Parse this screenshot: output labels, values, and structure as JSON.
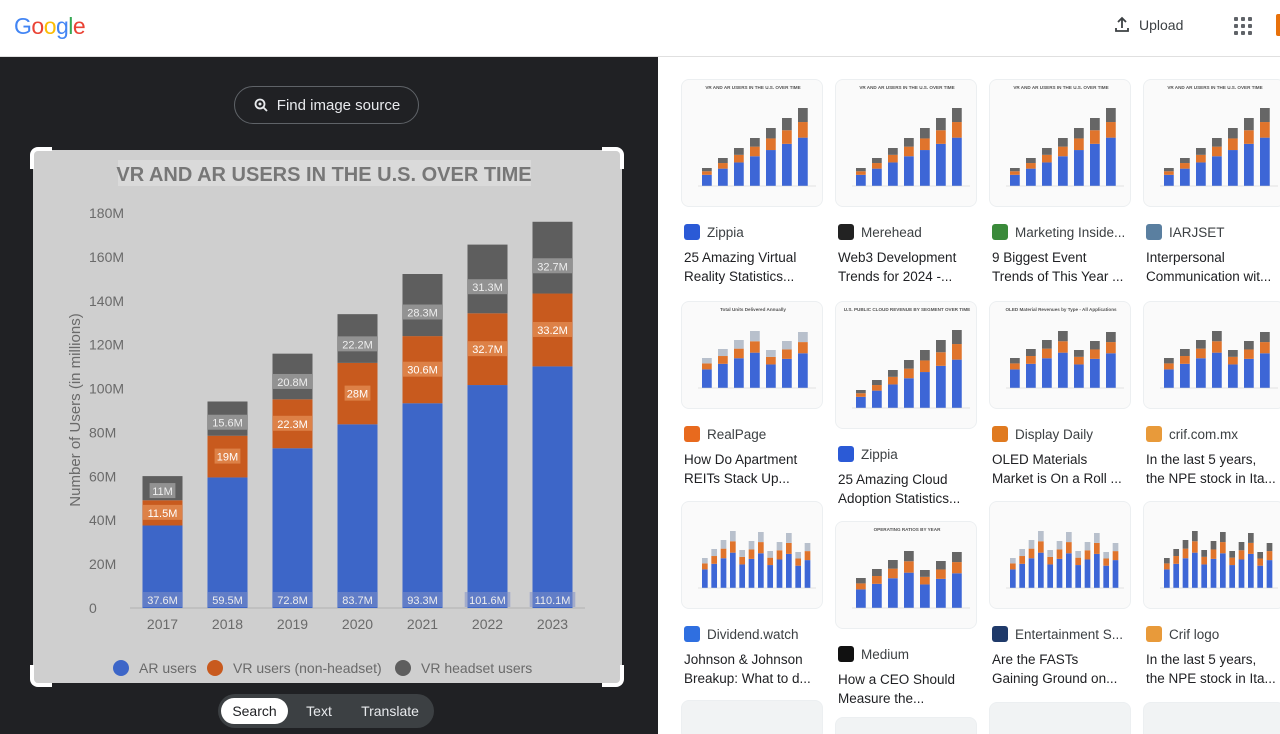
{
  "header": {
    "logo_letters": [
      {
        "ch": "G",
        "color": "#4285f4"
      },
      {
        "ch": "o",
        "color": "#ea4335"
      },
      {
        "ch": "o",
        "color": "#fbbc05"
      },
      {
        "ch": "g",
        "color": "#4285f4"
      },
      {
        "ch": "l",
        "color": "#34a853"
      },
      {
        "ch": "e",
        "color": "#ea4335"
      }
    ],
    "upload_label": "Upload"
  },
  "lens": {
    "find_source_label": "Find image source",
    "modes": [
      "Search",
      "Text",
      "Translate"
    ],
    "active_mode": "Search"
  },
  "chart_data": {
    "type": "bar",
    "stacked": true,
    "title": "VR AND AR USERS IN THE U.S. OVER TIME",
    "ylabel": "Number of Users (in millions)",
    "xlabel": "",
    "ylim": [
      0,
      180
    ],
    "yticks": [
      "0",
      "20M",
      "40M",
      "60M",
      "80M",
      "100M",
      "120M",
      "140M",
      "160M",
      "180M"
    ],
    "categories": [
      "2017",
      "2018",
      "2019",
      "2020",
      "2021",
      "2022",
      "2023"
    ],
    "series": [
      {
        "name": "AR users",
        "color": "#3d66c8",
        "values": [
          37.6,
          59.5,
          72.8,
          83.7,
          93.3,
          101.6,
          110.1
        ],
        "labels": [
          "37.6M",
          "59.5M",
          "72.8M",
          "83.7M",
          "93.3M",
          "101.6M",
          "110.1M"
        ]
      },
      {
        "name": "VR users (non-headset)",
        "color": "#c85a1e",
        "values": [
          11.5,
          19,
          22.3,
          28,
          30.6,
          32.7,
          33.2
        ],
        "labels": [
          "11.5M",
          "19M",
          "22.3M",
          "28M",
          "30.6M",
          "32.7M",
          "33.2M"
        ]
      },
      {
        "name": "VR headset users",
        "color": "#5e5e5e",
        "values": [
          11,
          15.6,
          20.8,
          22.2,
          28.3,
          31.3,
          32.7
        ],
        "labels": [
          "11M",
          "15.6M",
          "20.8M",
          "22.2M",
          "28.3M",
          "31.3M",
          "32.7M"
        ]
      }
    ],
    "legend_position": "bottom",
    "grid": false
  },
  "results": [
    {
      "source": "Zippia",
      "favicon": "zippia",
      "title": "25 Amazing Virtual\nReality Statistics...",
      "thumb_title": "VR AND AR USERS IN THE U.S. OVER TIME"
    },
    {
      "source": "Merehead",
      "favicon": "merehead",
      "title": "Web3 Development\nTrends for 2024 -...",
      "thumb_title": "VR AND AR USERS IN THE U.S. OVER TIME"
    },
    {
      "source": "Marketing Inside...",
      "favicon": "marketing",
      "title": "9 Biggest Event\nTrends of This Year ...",
      "thumb_title": "VR AND AR USERS IN THE U.S. OVER TIME"
    },
    {
      "source": "IARJSET",
      "favicon": "iarjset",
      "title": "Interpersonal\nCommunication wit...",
      "thumb_title": "VR AND AR USERS IN THE U.S. OVER TIME"
    },
    {
      "source": "RealPage",
      "favicon": "realpage",
      "title": "How Do Apartment\nREITs Stack Up...",
      "thumb_title": "Total Units Delivered Annually"
    },
    {
      "source": "Zippia",
      "favicon": "zippia",
      "title": "25 Amazing Cloud\nAdoption Statistics...",
      "thumb_title": "U.S. PUBLIC CLOUD REVENUE BY SEGMENT OVER TIME"
    },
    {
      "source": "Display Daily",
      "favicon": "displaydaily",
      "title": "OLED Materials\nMarket is On a Roll ...",
      "thumb_title": "OLED Material Revenues by Type - All Applications"
    },
    {
      "source": "crif.com.mx",
      "favicon": "crif",
      "title": "In the last 5 years,\nthe NPE stock in Ita...",
      "thumb_title": ""
    },
    {
      "source": "Dividend.watch",
      "favicon": "dividend",
      "title": "Johnson & Johnson\nBreakup: What to d...",
      "thumb_title": ""
    },
    {
      "source": "Medium",
      "favicon": "medium",
      "title": "How a CEO Should\nMeasure the...",
      "thumb_title": "OPERATING RATIOS BY YEAR"
    },
    {
      "source": "Entertainment S...",
      "favicon": "entertainment",
      "title": "Are the FASTs\nGaining Ground on...",
      "thumb_title": ""
    },
    {
      "source": "Crif logo",
      "favicon": "crif",
      "title": "In the last 5 years,\nthe NPE stock in Ita...",
      "thumb_title": ""
    }
  ],
  "colors": {
    "lens_bg": "#202124",
    "ar": "#3d66c8",
    "vr": "#c85a1e",
    "headset": "#5e5e5e"
  }
}
